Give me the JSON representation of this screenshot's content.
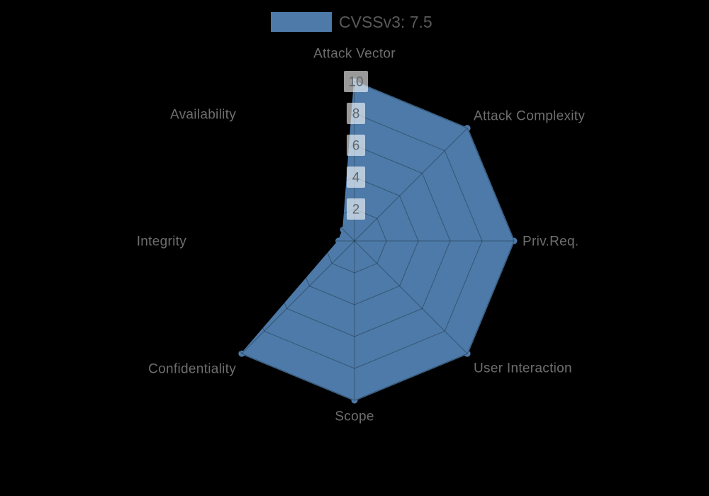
{
  "background_color": "#000000",
  "legend": {
    "label": "CVSSv3: 7.5",
    "swatch_color": "#4d7aa8",
    "text_color": "#595959"
  },
  "chart_data": {
    "type": "radar",
    "title": "",
    "legend_position": "top-center",
    "grid": true,
    "axes": [
      "Attack Vector",
      "Attack Complexity",
      "Priv.Req.",
      "User Interaction",
      "Scope",
      "Confidentiality",
      "Integrity",
      "Availability"
    ],
    "series": [
      {
        "name": "CVSSv3: 7.5",
        "color": "#4d7aa8",
        "values": [
          10,
          10,
          10,
          10,
          10,
          10,
          1,
          1
        ]
      }
    ],
    "tick_values": [
      2,
      4,
      6,
      8,
      10
    ],
    "tick_labels": [
      "2",
      "4",
      "6",
      "8",
      "10"
    ],
    "rlim": [
      0,
      10
    ],
    "colors": {
      "series_fill": "#4d7aa8",
      "grid_line": "rgba(0,0,0,0.30)",
      "axis_label": "#6e6e6e",
      "tick_text": "#60666c",
      "tick_box": "rgba(255,255,255,0.60)"
    },
    "layout": {
      "center": [
        500,
        340
      ],
      "radius_px": 225,
      "start_angle_deg": -90,
      "clockwise": true
    }
  }
}
